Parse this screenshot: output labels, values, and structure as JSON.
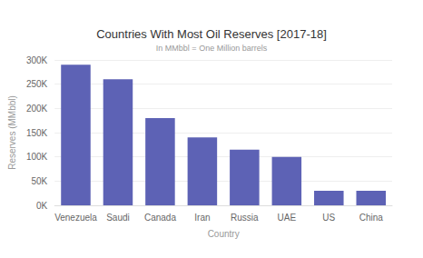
{
  "chart_data": {
    "type": "bar",
    "title": "Countries With Most Oil Reserves [2017-18]",
    "subtitle": "In MMbbl = One Million barrels",
    "x_label": "Country",
    "y_label": "Reserves (MMbbl)",
    "categories": [
      "Venezuela",
      "Saudi",
      "Canada",
      "Iran",
      "Russia",
      "UAE",
      "US",
      "China"
    ],
    "values": [
      290000,
      260000,
      180000,
      140000,
      115000,
      100000,
      30000,
      30000
    ],
    "color": "#5d62b5",
    "ylim": [
      0,
      300000
    ],
    "yticks": [
      {
        "value": 0,
        "label": "0K"
      },
      {
        "value": 50000,
        "label": "50K"
      },
      {
        "value": 100000,
        "label": "100K"
      },
      {
        "value": 150000,
        "label": "150K"
      },
      {
        "value": 200000,
        "label": "200K"
      },
      {
        "value": 250000,
        "label": "250K"
      },
      {
        "value": 300000,
        "label": "300K"
      }
    ],
    "grid": true
  }
}
